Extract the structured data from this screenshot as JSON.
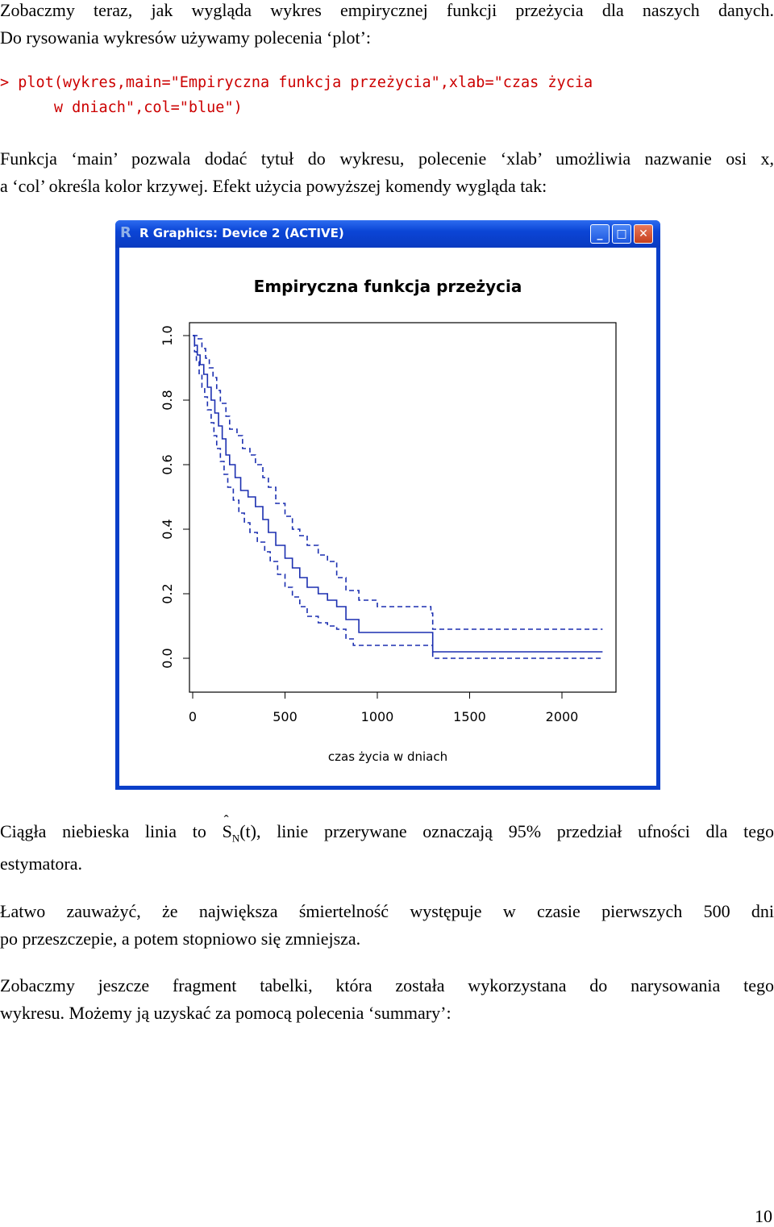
{
  "intro": {
    "line1": "Zobaczmy teraz, jak wygląda wykres empirycznej funkcji przeżycia dla naszych danych.",
    "line2": "Do rysowania wykresów używamy polecenia ‘plot’:"
  },
  "code": {
    "line1": "> plot(wykres,main=\"Empiryczna funkcja przeżycia\",xlab=\"czas życia",
    "line2": "      w dniach\",col=\"blue\")"
  },
  "explain": {
    "line1": "Funkcja ‘main’ pozwala dodać tytuł do wykresu, polecenie ‘xlab’ umożliwia nazwanie osi x,",
    "line2": "a ‘col’ określa kolor krzywej. Efekt użycia powyższej komendy wygląda tak:"
  },
  "window": {
    "title": "R Graphics: Device 2 (ACTIVE)",
    "minimize_label": "_",
    "maximize_label": "□",
    "close_label": "✕"
  },
  "colors": {
    "curve": "#1b2fb0",
    "titlebar": "#0b45d6"
  },
  "chart_data": {
    "type": "line",
    "title": "Empiryczna funkcja przeżycia",
    "xlabel": "czas życia w dniach",
    "ylabel": "",
    "xlim": [
      0,
      2250
    ],
    "ylim": [
      0,
      1.0
    ],
    "xticks": [
      0,
      500,
      1000,
      1500,
      2000
    ],
    "yticks": [
      0.0,
      0.2,
      0.4,
      0.6,
      0.8,
      1.0
    ],
    "xtick_labels": [
      "0",
      "500",
      "1000",
      "1500",
      "2000"
    ],
    "ytick_labels": [
      "0.0",
      "0.2",
      "0.4",
      "0.6",
      "0.8",
      "1.0"
    ],
    "series": [
      {
        "style": "solid",
        "points": [
          [
            0,
            1.0
          ],
          [
            10,
            0.97
          ],
          [
            25,
            0.94
          ],
          [
            40,
            0.91
          ],
          [
            60,
            0.88
          ],
          [
            80,
            0.84
          ],
          [
            100,
            0.8
          ],
          [
            120,
            0.76
          ],
          [
            140,
            0.72
          ],
          [
            160,
            0.68
          ],
          [
            180,
            0.63
          ],
          [
            200,
            0.6
          ],
          [
            230,
            0.56
          ],
          [
            260,
            0.52
          ],
          [
            300,
            0.5
          ],
          [
            340,
            0.47
          ],
          [
            380,
            0.43
          ],
          [
            410,
            0.39
          ],
          [
            450,
            0.35
          ],
          [
            500,
            0.31
          ],
          [
            540,
            0.28
          ],
          [
            580,
            0.25
          ],
          [
            620,
            0.22
          ],
          [
            680,
            0.2
          ],
          [
            730,
            0.18
          ],
          [
            780,
            0.16
          ],
          [
            830,
            0.12
          ],
          [
            900,
            0.08
          ],
          [
            1000,
            0.08
          ],
          [
            1300,
            0.02
          ],
          [
            2220,
            0.02
          ]
        ]
      },
      {
        "style": "dashed",
        "points": [
          [
            0,
            1.0
          ],
          [
            30,
            0.99
          ],
          [
            50,
            0.96
          ],
          [
            70,
            0.93
          ],
          [
            90,
            0.9
          ],
          [
            110,
            0.87
          ],
          [
            130,
            0.83
          ],
          [
            150,
            0.79
          ],
          [
            180,
            0.75
          ],
          [
            200,
            0.71
          ],
          [
            240,
            0.69
          ],
          [
            270,
            0.65
          ],
          [
            310,
            0.63
          ],
          [
            340,
            0.6
          ],
          [
            380,
            0.56
          ],
          [
            410,
            0.53
          ],
          [
            450,
            0.48
          ],
          [
            500,
            0.44
          ],
          [
            540,
            0.4
          ],
          [
            580,
            0.38
          ],
          [
            620,
            0.35
          ],
          [
            680,
            0.32
          ],
          [
            730,
            0.3
          ],
          [
            780,
            0.25
          ],
          [
            830,
            0.21
          ],
          [
            900,
            0.18
          ],
          [
            1000,
            0.16
          ],
          [
            1200,
            0.16
          ],
          [
            1290,
            0.14
          ],
          [
            1300,
            0.09
          ],
          [
            2220,
            0.09
          ]
        ]
      },
      {
        "style": "dashed",
        "points": [
          [
            0,
            1.0
          ],
          [
            10,
            0.95
          ],
          [
            20,
            0.92
          ],
          [
            35,
            0.88
          ],
          [
            50,
            0.84
          ],
          [
            65,
            0.81
          ],
          [
            80,
            0.77
          ],
          [
            100,
            0.73
          ],
          [
            115,
            0.69
          ],
          [
            130,
            0.65
          ],
          [
            150,
            0.61
          ],
          [
            170,
            0.57
          ],
          [
            190,
            0.53
          ],
          [
            220,
            0.49
          ],
          [
            250,
            0.45
          ],
          [
            280,
            0.42
          ],
          [
            310,
            0.39
          ],
          [
            350,
            0.36
          ],
          [
            390,
            0.33
          ],
          [
            420,
            0.3
          ],
          [
            460,
            0.26
          ],
          [
            500,
            0.22
          ],
          [
            540,
            0.19
          ],
          [
            580,
            0.16
          ],
          [
            620,
            0.13
          ],
          [
            680,
            0.11
          ],
          [
            730,
            0.1
          ],
          [
            780,
            0.09
          ],
          [
            830,
            0.06
          ],
          [
            870,
            0.04
          ],
          [
            1000,
            0.04
          ],
          [
            1300,
            0.0
          ],
          [
            2220,
            0.0
          ]
        ]
      }
    ]
  },
  "after": {
    "line1_a": "Ciągła niebieska linia to",
    "formula_S": "S",
    "formula_hat": "ˆ",
    "formula_sub": "N",
    "formula_arg": "(t)",
    "line1_b": ", linie przerywane oznaczają 95% przedział ufności dla tego",
    "line2": "estymatora.",
    "p2_line1": "Łatwo zauważyć, że największa śmiertelność występuje w czasie pierwszych 500 dni",
    "p2_line2": "po przeszczepie, a potem stopniowo się zmniejsza.",
    "p3_line1": "Zobaczmy jeszcze fragment tabelki, która została wykorzystana do narysowania tego",
    "p3_line2": "wykresu. Możemy ją uzyskać za pomocą polecenia ‘summary’:"
  },
  "page_number": "10"
}
